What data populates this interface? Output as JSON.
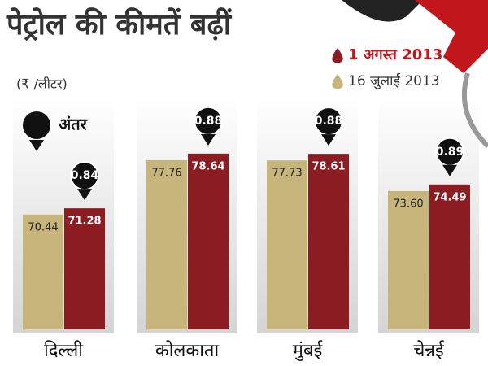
{
  "chart_data": {
    "type": "bar",
    "title": "पेट्रोल की कीमतें बढ़ीं",
    "subtitle": "(₹ /लीटर)",
    "difference_label": "अंतर",
    "categories": [
      "दिल्ली",
      "कोलकाता",
      "मुंबई",
      "चेन्नई"
    ],
    "series": [
      {
        "name": "16 जुलाई 2013",
        "color": "#c8b57c",
        "values": [
          70.44,
          77.76,
          77.73,
          73.6
        ],
        "value_labels": [
          "70.44",
          "77.76",
          "77.73",
          "73.60"
        ]
      },
      {
        "name": "1 अगस्त 2013",
        "color": "#8a1c22",
        "values": [
          71.28,
          78.64,
          78.61,
          74.49
        ]
      }
    ],
    "differences": [
      0.84,
      0.88,
      0.88,
      0.89
    ],
    "ylim": [
      55,
      90
    ]
  }
}
